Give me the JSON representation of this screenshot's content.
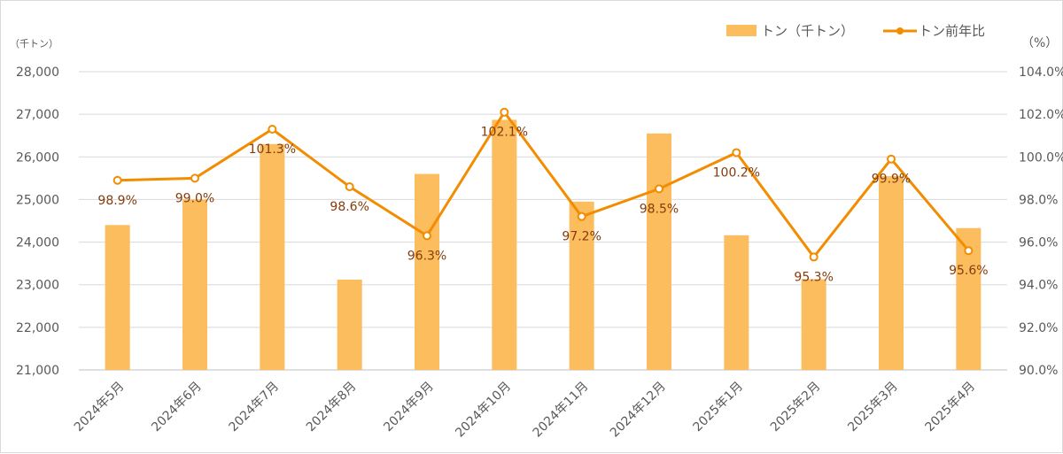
{
  "chart_data": {
    "type": "bar+line",
    "categories": [
      "2024年5月",
      "2024年6月",
      "2024年7月",
      "2024年8月",
      "2024年9月",
      "2024年10月",
      "2024年11月",
      "2024年12月",
      "2025年1月",
      "2025年2月",
      "2025年3月",
      "2025年4月"
    ],
    "series": [
      {
        "name": "トン（千トン）",
        "type": "bar",
        "axis": "left",
        "color": "#fbbd5e",
        "values": [
          24400,
          25000,
          26300,
          23120,
          25600,
          26870,
          24950,
          26550,
          24160,
          23130,
          25550,
          24330
        ]
      },
      {
        "name": "トン前年比",
        "type": "line",
        "axis": "right",
        "color": "#f28c00",
        "values": [
          98.9,
          99.0,
          101.3,
          98.6,
          96.3,
          102.1,
          97.2,
          98.5,
          100.2,
          95.3,
          99.9,
          95.6
        ],
        "labels": [
          "98.9%",
          "99.0%",
          "101.3%",
          "98.6%",
          "96.3%",
          "102.1%",
          "97.2%",
          "98.5%",
          "100.2%",
          "95.3%",
          "99.9%",
          "95.6%"
        ]
      }
    ],
    "left_axis": {
      "unit": "（千トン）",
      "min": 21000,
      "max": 28000,
      "ticks": [
        "28,000",
        "27,000",
        "26,000",
        "25,000",
        "24,000",
        "23,000",
        "22,000",
        "21,000"
      ]
    },
    "right_axis": {
      "unit": "（%）",
      "min": 90,
      "max": 104,
      "ticks": [
        "104.0%",
        "102.0%",
        "100.0%",
        "98.0%",
        "96.0%",
        "94.0%",
        "92.0%",
        "90.0%"
      ]
    },
    "legend_position": "top-right",
    "grid": true
  }
}
